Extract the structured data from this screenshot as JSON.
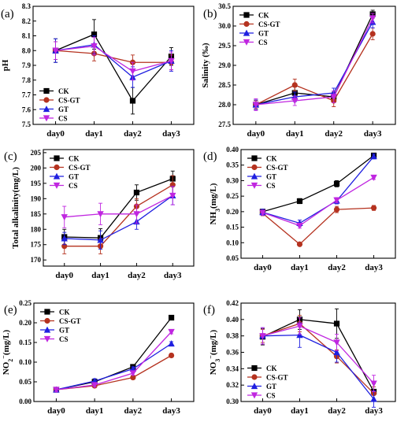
{
  "chart_data": [
    {
      "type": "line",
      "panel_label": "(a)",
      "ylabel": "pH",
      "x": [
        "day0",
        "day1",
        "day2",
        "day3"
      ],
      "ylim": [
        7.5,
        8.3
      ],
      "yticks": [
        7.5,
        7.6,
        7.7,
        7.8,
        7.9,
        8.0,
        8.1,
        8.2,
        8.3
      ],
      "tick_decimals": 1,
      "legend_position": "lower-left",
      "series": [
        {
          "name": "CK",
          "color": "#000000",
          "marker": "square",
          "values": [
            8.0,
            8.11,
            7.66,
            7.96
          ],
          "errors": [
            0.08,
            0.1,
            0.09,
            0.06
          ]
        },
        {
          "name": "CS-GT",
          "color": "#b5321f",
          "marker": "circle",
          "values": [
            8.0,
            7.98,
            7.92,
            7.92
          ],
          "errors": [
            0.06,
            0.05,
            0.05,
            0.05
          ]
        },
        {
          "name": "GT",
          "color": "#1f1fe0",
          "marker": "triangle",
          "values": [
            8.0,
            8.04,
            7.82,
            7.93
          ],
          "errors": [
            0.08,
            0.06,
            0.07,
            0.07
          ]
        },
        {
          "name": "CS",
          "color": "#c026e0",
          "marker": "triangle-down",
          "values": [
            8.0,
            8.03,
            7.86,
            7.93
          ],
          "errors": [
            0.06,
            0.06,
            0.06,
            0.06
          ]
        }
      ]
    },
    {
      "type": "line",
      "panel_label": "(b)",
      "ylabel": "Salinity (‰)",
      "x": [
        "day0",
        "day1",
        "day2",
        "day3"
      ],
      "ylim": [
        27.5,
        30.5
      ],
      "yticks": [
        27.5,
        28.0,
        28.5,
        29.0,
        29.5,
        30.0,
        30.5
      ],
      "tick_decimals": 1,
      "legend_position": "top-left",
      "series": [
        {
          "name": "CK",
          "color": "#000000",
          "marker": "square",
          "values": [
            28.0,
            28.3,
            28.2,
            30.3
          ],
          "errors": [
            0.12,
            0.15,
            0.12,
            0.1
          ]
        },
        {
          "name": "CS-GT",
          "color": "#b5321f",
          "marker": "circle",
          "values": [
            28.0,
            28.5,
            28.1,
            29.8
          ],
          "errors": [
            0.1,
            0.15,
            0.15,
            0.15
          ]
        },
        {
          "name": "GT",
          "color": "#1f1fe0",
          "marker": "triangle",
          "values": [
            28.0,
            28.2,
            28.3,
            30.1
          ],
          "errors": [
            0.12,
            0.12,
            0.12,
            0.15
          ]
        },
        {
          "name": "CS",
          "color": "#c026e0",
          "marker": "triangle-down",
          "values": [
            28.0,
            28.1,
            28.2,
            30.2
          ],
          "errors": [
            0.15,
            0.12,
            0.15,
            0.12
          ]
        }
      ]
    },
    {
      "type": "line",
      "panel_label": "(c)",
      "ylabel": "Total alkalinity(mg/L)",
      "x": [
        "day0",
        "day1",
        "day2",
        "day3"
      ],
      "ylim": [
        168,
        206
      ],
      "yticks": [
        170,
        175,
        180,
        185,
        190,
        195,
        200,
        205
      ],
      "tick_decimals": 0,
      "legend_position": "top-left",
      "series": [
        {
          "name": "CK",
          "color": "#000000",
          "marker": "square",
          "values": [
            177.5,
            177.2,
            192.0,
            196.5
          ],
          "errors": [
            2.5,
            3.0,
            2.5,
            2.5
          ]
        },
        {
          "name": "CS-GT",
          "color": "#b5321f",
          "marker": "circle",
          "values": [
            174.5,
            174.5,
            187.5,
            194.5
          ],
          "errors": [
            2.5,
            2.5,
            2.5,
            3.0
          ]
        },
        {
          "name": "GT",
          "color": "#1f1fe0",
          "marker": "triangle",
          "values": [
            177.0,
            176.5,
            182.5,
            191.0
          ],
          "errors": [
            2.0,
            3.0,
            2.5,
            3.0
          ]
        },
        {
          "name": "CS",
          "color": "#c026e0",
          "marker": "triangle-down",
          "values": [
            184.0,
            185.0,
            185.0,
            191.0
          ],
          "errors": [
            3.5,
            3.5,
            3.0,
            3.0
          ]
        }
      ]
    },
    {
      "type": "line",
      "panel_label": "(d)",
      "ylabel": "NH3(mg/L)",
      "x": [
        "day0",
        "day1",
        "day2",
        "day3"
      ],
      "ylim": [
        0.05,
        0.4
      ],
      "yticks": [
        0.05,
        0.1,
        0.15,
        0.2,
        0.25,
        0.3,
        0.35,
        0.4
      ],
      "tick_decimals": 2,
      "legend_position": "top-left",
      "series": [
        {
          "name": "CK",
          "color": "#000000",
          "marker": "square",
          "values": [
            0.2,
            0.234,
            0.29,
            0.381
          ],
          "errors": [
            0.008,
            0.008,
            0.01,
            0.007
          ]
        },
        {
          "name": "CS-GT",
          "color": "#b5321f",
          "marker": "circle",
          "values": [
            0.195,
            0.095,
            0.207,
            0.212
          ],
          "errors": [
            0.008,
            0.006,
            0.01,
            0.008
          ]
        },
        {
          "name": "GT",
          "color": "#1f1fe0",
          "marker": "triangle",
          "values": [
            0.198,
            0.163,
            0.235,
            0.378
          ],
          "errors": [
            0.01,
            0.01,
            0.01,
            0.008
          ]
        },
        {
          "name": "CS",
          "color": "#c026e0",
          "marker": "triangle-down",
          "values": [
            0.197,
            0.155,
            0.237,
            0.31
          ],
          "errors": [
            0.008,
            0.008,
            0.008,
            0.006
          ]
        }
      ]
    },
    {
      "type": "line",
      "panel_label": "(e)",
      "ylabel": "NO2−(mg/L)",
      "x": [
        "day0",
        "day1",
        "day2",
        "day3"
      ],
      "ylim": [
        0.0,
        0.25
      ],
      "yticks": [
        0.0,
        0.05,
        0.1,
        0.15,
        0.2,
        0.25
      ],
      "tick_decimals": 2,
      "legend_position": "top-left",
      "series": [
        {
          "name": "CK",
          "color": "#000000",
          "marker": "square",
          "values": [
            0.03,
            0.05,
            0.088,
            0.213
          ],
          "errors": [
            0.006,
            0.006,
            0.006,
            0.006
          ]
        },
        {
          "name": "CS-GT",
          "color": "#b5321f",
          "marker": "circle",
          "values": [
            0.03,
            0.04,
            0.061,
            0.117
          ],
          "errors": [
            0.005,
            0.005,
            0.005,
            0.005
          ]
        },
        {
          "name": "GT",
          "color": "#1f1fe0",
          "marker": "triangle",
          "values": [
            0.03,
            0.052,
            0.083,
            0.147
          ],
          "errors": [
            0.005,
            0.006,
            0.005,
            0.005
          ]
        },
        {
          "name": "CS",
          "color": "#c026e0",
          "marker": "triangle-down",
          "values": [
            0.03,
            0.042,
            0.072,
            0.177
          ],
          "errors": [
            0.005,
            0.005,
            0.005,
            0.005
          ]
        }
      ]
    },
    {
      "type": "line",
      "panel_label": "(f)",
      "ylabel": "NO3−(mg/L)",
      "x": [
        "day0",
        "day1",
        "day2",
        "day3"
      ],
      "ylim": [
        0.3,
        0.42
      ],
      "yticks": [
        0.3,
        0.32,
        0.34,
        0.36,
        0.38,
        0.4,
        0.42
      ],
      "tick_decimals": 2,
      "legend_position": "lower-left",
      "series": [
        {
          "name": "CK",
          "color": "#000000",
          "marker": "square",
          "values": [
            0.379,
            0.4,
            0.395,
            0.312
          ],
          "errors": [
            0.01,
            0.012,
            0.018,
            0.01
          ]
        },
        {
          "name": "CS-GT",
          "color": "#b5321f",
          "marker": "circle",
          "values": [
            0.38,
            0.395,
            0.355,
            0.31
          ],
          "errors": [
            0.008,
            0.01,
            0.008,
            0.008
          ]
        },
        {
          "name": "GT",
          "color": "#1f1fe0",
          "marker": "triangle",
          "values": [
            0.38,
            0.381,
            0.36,
            0.303
          ],
          "errors": [
            0.01,
            0.015,
            0.012,
            0.01
          ]
        },
        {
          "name": "CS",
          "color": "#c026e0",
          "marker": "triangle-down",
          "values": [
            0.38,
            0.392,
            0.372,
            0.322
          ],
          "errors": [
            0.01,
            0.01,
            0.01,
            0.01
          ]
        }
      ]
    }
  ]
}
